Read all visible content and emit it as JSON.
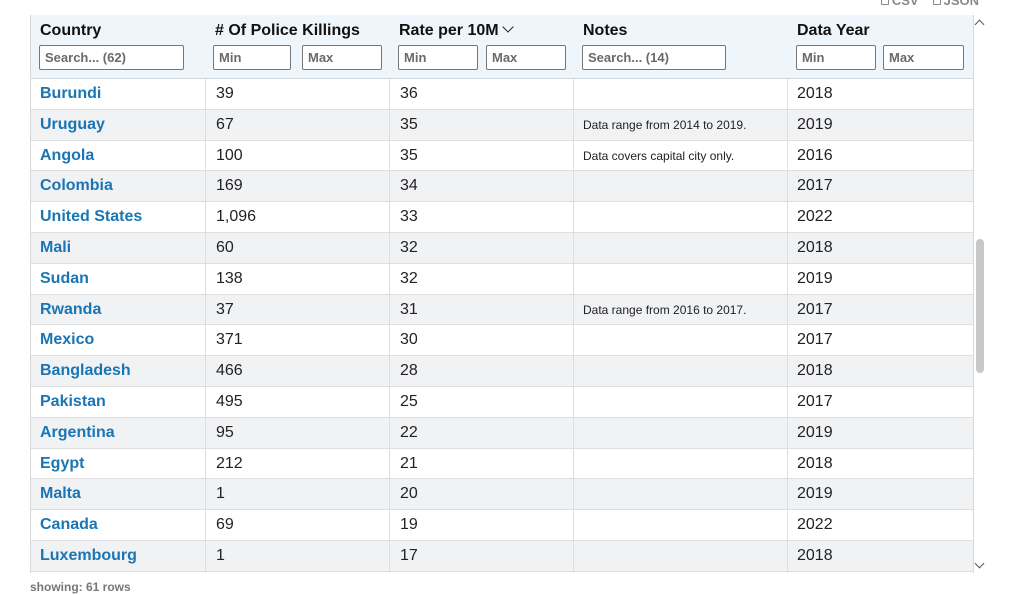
{
  "export": {
    "csv_label": "CSV",
    "json_label": "JSON"
  },
  "columns": [
    {
      "title": "Country",
      "filter_placeholder": "Search... (62)"
    },
    {
      "title": "# Of Police Killings",
      "min_placeholder": "Min",
      "max_placeholder": "Max"
    },
    {
      "title": "Rate per 10M",
      "min_placeholder": "Min",
      "max_placeholder": "Max",
      "sorted": "descending"
    },
    {
      "title": "Notes",
      "filter_placeholder": "Search... (14)"
    },
    {
      "title": "Data Year",
      "min_placeholder": "Min",
      "max_placeholder": "Max"
    }
  ],
  "rows": [
    {
      "country": "Burundi",
      "killings": "39",
      "rate": "36",
      "notes": "",
      "year": "2018"
    },
    {
      "country": "Uruguay",
      "killings": "67",
      "rate": "35",
      "notes": "Data range from 2014 to 2019.",
      "year": "2019"
    },
    {
      "country": "Angola",
      "killings": "100",
      "rate": "35",
      "notes": "Data covers capital city only.",
      "year": "2016"
    },
    {
      "country": "Colombia",
      "killings": "169",
      "rate": "34",
      "notes": "",
      "year": "2017"
    },
    {
      "country": "United States",
      "killings": "1,096",
      "rate": "33",
      "notes": "",
      "year": "2022"
    },
    {
      "country": "Mali",
      "killings": "60",
      "rate": "32",
      "notes": "",
      "year": "2018"
    },
    {
      "country": "Sudan",
      "killings": "138",
      "rate": "32",
      "notes": "",
      "year": "2019"
    },
    {
      "country": "Rwanda",
      "killings": "37",
      "rate": "31",
      "notes": "Data range from 2016 to 2017.",
      "year": "2017"
    },
    {
      "country": "Mexico",
      "killings": "371",
      "rate": "30",
      "notes": "",
      "year": "2017"
    },
    {
      "country": "Bangladesh",
      "killings": "466",
      "rate": "28",
      "notes": "",
      "year": "2018"
    },
    {
      "country": "Pakistan",
      "killings": "495",
      "rate": "25",
      "notes": "",
      "year": "2017"
    },
    {
      "country": "Argentina",
      "killings": "95",
      "rate": "22",
      "notes": "",
      "year": "2019"
    },
    {
      "country": "Egypt",
      "killings": "212",
      "rate": "21",
      "notes": "",
      "year": "2018"
    },
    {
      "country": "Malta",
      "killings": "1",
      "rate": "20",
      "notes": "",
      "year": "2019"
    },
    {
      "country": "Canada",
      "killings": "69",
      "rate": "19",
      "notes": "",
      "year": "2022"
    },
    {
      "country": "Luxembourg",
      "killings": "1",
      "rate": "17",
      "notes": "",
      "year": "2018"
    },
    {
      "country": "",
      "killings": "",
      "rate": "",
      "notes": "",
      "year": ""
    }
  ],
  "footer": {
    "status": "showing: 61 rows"
  },
  "colors": {
    "link": "#1a75b5",
    "header_bg": "#eef6fc",
    "alt_row": "#f1f2f4"
  }
}
